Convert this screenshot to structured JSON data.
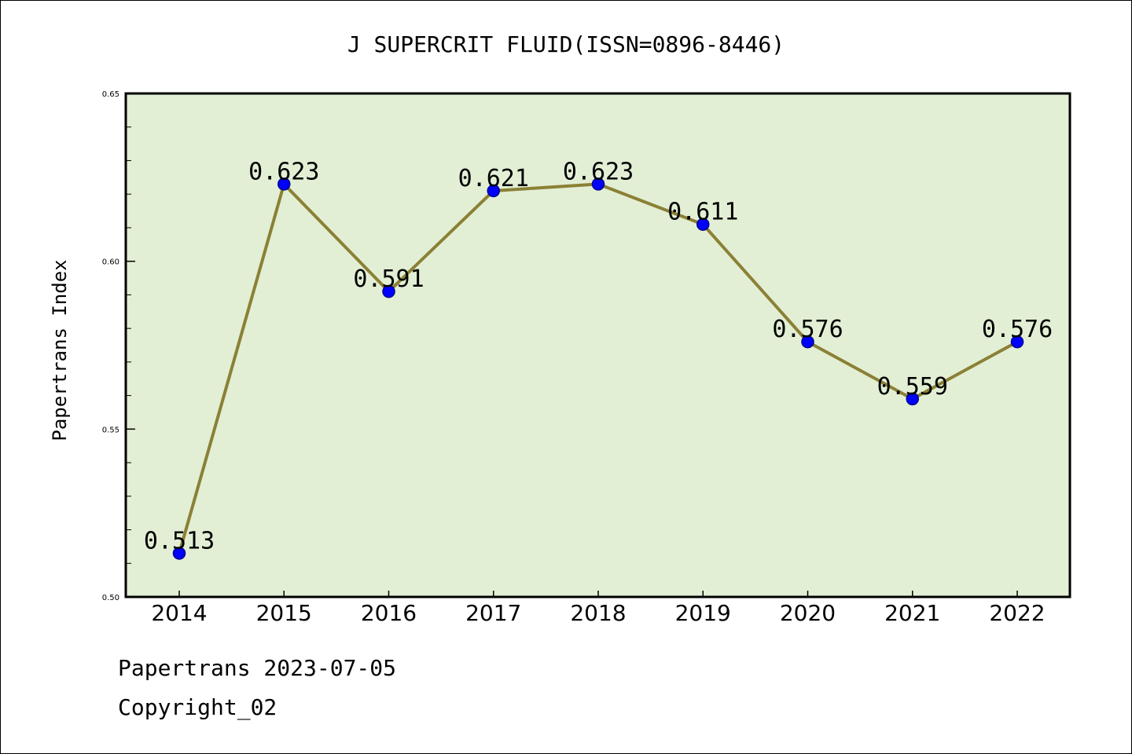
{
  "chart_data": {
    "type": "line",
    "title": "J SUPERCRIT FLUID(ISSN=0896-8446)",
    "xlabel": "",
    "ylabel": "Papertrans Index",
    "categories": [
      "2014",
      "2015",
      "2016",
      "2017",
      "2018",
      "2019",
      "2020",
      "2021",
      "2022"
    ],
    "series": [
      {
        "values": [
          0.513,
          0.623,
          0.591,
          0.621,
          0.623,
          0.611,
          0.576,
          0.559,
          0.576
        ],
        "data_labels": [
          "0.513",
          "0.623",
          "0.591",
          "0.621",
          "0.623",
          "0.611",
          "0.576",
          "0.559",
          "0.576"
        ]
      }
    ],
    "ylim": [
      0.5,
      0.65
    ],
    "yticks": [
      0.5,
      0.55,
      0.6,
      0.65
    ],
    "ytick_labels": [
      "0.50",
      "0.55",
      "0.60",
      "0.65"
    ],
    "grid": false,
    "legend": "none",
    "colors": {
      "plot_background": "#e2efd5",
      "line": "#8b8035",
      "marker": "#0000ff",
      "marker_edge": "#00008b"
    }
  },
  "footer": {
    "line1": "Papertrans 2023-07-05",
    "line2": "Copyright_02"
  }
}
